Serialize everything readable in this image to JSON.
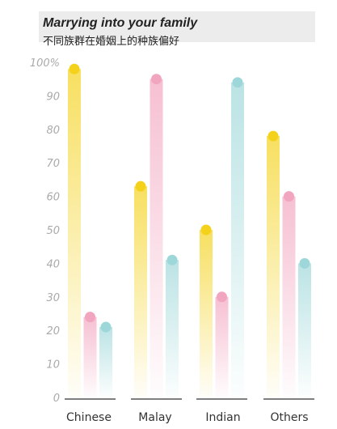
{
  "chart_data": {
    "type": "bar",
    "title": "Marrying into your family",
    "subtitle": "不同族群在婚姻上的种族偏好",
    "categories": [
      "Chinese",
      "Malay",
      "Indian",
      "Others"
    ],
    "series": [
      {
        "values": [
          98,
          63,
          50,
          78
        ],
        "color": "#f4d21c"
      },
      {
        "values": [
          24,
          95,
          30,
          60
        ],
        "color": "#f2a5bf"
      },
      {
        "values": [
          21,
          41,
          94,
          40
        ],
        "color": "#9ed7d9"
      }
    ],
    "ylim": [
      0,
      100
    ],
    "yticks": [
      "0",
      "10",
      "20",
      "30",
      "40",
      "50",
      "60",
      "70",
      "80",
      "90",
      "100%"
    ],
    "grid": false,
    "legend": "none"
  }
}
